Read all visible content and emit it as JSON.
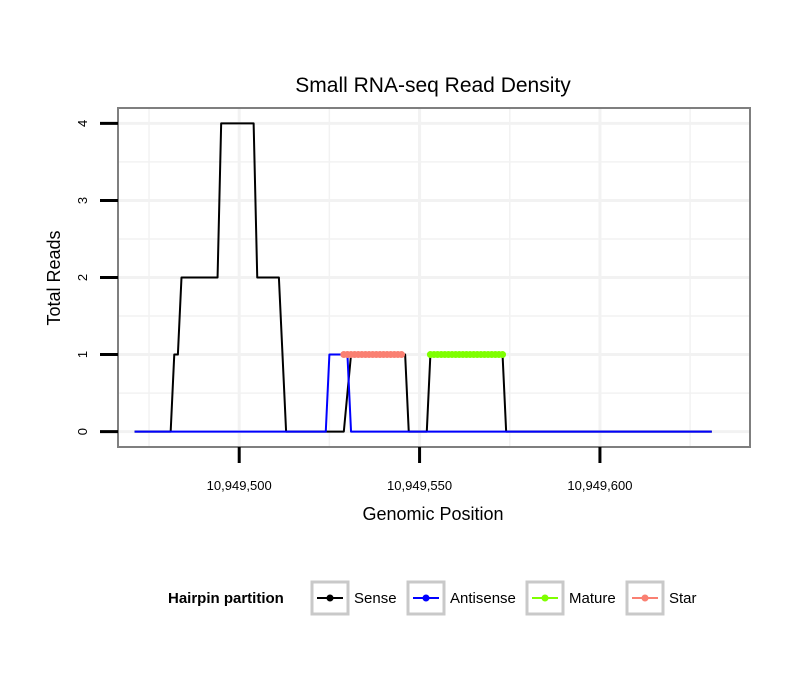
{
  "chart_data": {
    "type": "line",
    "title": "Small RNA-seq Read Density",
    "xlabel": "Genomic Position",
    "ylabel": "Total Reads",
    "xlim": [
      10949466.4,
      10949641.6
    ],
    "ylim": [
      -0.2,
      4.2
    ],
    "x_ticks": [
      10949500,
      10949550,
      10949600
    ],
    "x_tick_labels": [
      "10,949,500",
      "10,949,550",
      "10,949,600"
    ],
    "y_ticks": [
      0,
      1,
      2,
      3,
      4
    ],
    "y_tick_labels": [
      "0",
      "1",
      "2",
      "3",
      "4"
    ],
    "grid": true,
    "legend": {
      "title": "Hairpin partition",
      "position": "bottom",
      "entries": [
        {
          "label": "Sense",
          "color": "#000000"
        },
        {
          "label": "Antisense",
          "color": "#0000ff"
        },
        {
          "label": "Mature",
          "color": "#7fff00"
        },
        {
          "label": "Star",
          "color": "#fa8072"
        }
      ]
    },
    "series": [
      {
        "name": "Sense",
        "color": "#000000",
        "style": "line",
        "x": [
          10949471,
          10949481,
          10949482,
          10949483,
          10949484,
          10949494,
          10949495,
          10949504,
          10949505,
          10949511,
          10949513,
          10949529,
          10949531,
          10949546,
          10949547,
          10949552,
          10949553,
          10949573,
          10949574,
          10949631
        ],
        "y": [
          0,
          0,
          1,
          1,
          2,
          2,
          4,
          4,
          2,
          2,
          0,
          0,
          1,
          1,
          0,
          0,
          1,
          1,
          0,
          0
        ]
      },
      {
        "name": "Antisense",
        "color": "#0000ff",
        "style": "line",
        "x": [
          10949471,
          10949524,
          10949525,
          10949530,
          10949531,
          10949631
        ],
        "y": [
          0,
          0,
          1,
          1,
          0,
          0
        ]
      },
      {
        "name": "Star",
        "color": "#fa8072",
        "style": "points",
        "x": [
          10949529,
          10949530,
          10949531,
          10949532,
          10949533,
          10949534,
          10949535,
          10949536,
          10949537,
          10949538,
          10949539,
          10949540,
          10949541,
          10949542,
          10949543,
          10949544,
          10949545
        ],
        "y": [
          1,
          1,
          1,
          1,
          1,
          1,
          1,
          1,
          1,
          1,
          1,
          1,
          1,
          1,
          1,
          1,
          1
        ]
      },
      {
        "name": "Mature",
        "color": "#7fff00",
        "style": "points",
        "x": [
          10949553,
          10949554,
          10949555,
          10949556,
          10949557,
          10949558,
          10949559,
          10949560,
          10949561,
          10949562,
          10949563,
          10949564,
          10949565,
          10949566,
          10949567,
          10949568,
          10949569,
          10949570,
          10949571,
          10949572,
          10949573
        ],
        "y": [
          1,
          1,
          1,
          1,
          1,
          1,
          1,
          1,
          1,
          1,
          1,
          1,
          1,
          1,
          1,
          1,
          1,
          1,
          1,
          1,
          1
        ]
      }
    ]
  }
}
